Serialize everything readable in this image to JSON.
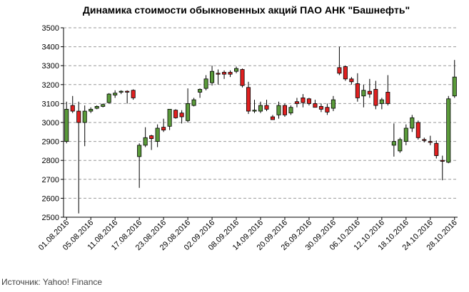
{
  "source_text": "Источник: Yahoo! Finance",
  "chart_data": {
    "type": "candlestick",
    "title": "Динамика стоимости  обыкновенных акций ПАО АНК \"Башнефть\"",
    "xlabel": "",
    "ylabel": "",
    "ylim": [
      2500,
      3500
    ],
    "yticks": [
      2500,
      2600,
      2700,
      2800,
      2900,
      3000,
      3100,
      3200,
      3300,
      3400,
      3500
    ],
    "grid": true,
    "colors": {
      "up": "#5a9a3a",
      "down": "#e02020",
      "grid": "#999999",
      "wick": "#000000"
    },
    "xtick_labels": [
      "01.08.2016",
      "05.08.2016",
      "11.08.2016",
      "17.08.2016",
      "23.08.2016",
      "29.08.2016",
      "02.09.2016",
      "08.09.2016",
      "14.09.2016",
      "20.09.2016",
      "26.09.2016",
      "30.09.2016",
      "06.10.2016",
      "12.10.2016",
      "18.10.2016",
      "24.10.2016",
      "28.10.2016"
    ],
    "candles": [
      {
        "o": 2900,
        "h": 3110,
        "l": 2890,
        "c": 3070
      },
      {
        "o": 3090,
        "h": 3140,
        "l": 3050,
        "c": 3060
      },
      {
        "o": 3060,
        "h": 3110,
        "l": 2520,
        "c": 3000
      },
      {
        "o": 3000,
        "h": 3090,
        "l": 2875,
        "c": 3060
      },
      {
        "o": 3060,
        "h": 3080,
        "l": 3050,
        "c": 3070
      },
      {
        "o": 3075,
        "h": 3090,
        "l": 3070,
        "c": 3085
      },
      {
        "o": 3085,
        "h": 3100,
        "l": 3080,
        "c": 3095
      },
      {
        "o": 3105,
        "h": 3155,
        "l": 3100,
        "c": 3150
      },
      {
        "o": 3145,
        "h": 3170,
        "l": 3130,
        "c": 3155
      },
      {
        "o": 3160,
        "h": 3170,
        "l": 3150,
        "c": 3165
      },
      {
        "o": 3165,
        "h": 3170,
        "l": 3100,
        "c": 3160
      },
      {
        "o": 3170,
        "h": 3175,
        "l": 3120,
        "c": 3130
      },
      {
        "o": 2820,
        "h": 2890,
        "l": 2655,
        "c": 2880
      },
      {
        "o": 2880,
        "h": 2975,
        "l": 2870,
        "c": 2920
      },
      {
        "o": 2930,
        "h": 2935,
        "l": 2855,
        "c": 2915
      },
      {
        "o": 2900,
        "h": 2990,
        "l": 2870,
        "c": 2970
      },
      {
        "o": 2975,
        "h": 3020,
        "l": 2950,
        "c": 2960
      },
      {
        "o": 2980,
        "h": 3070,
        "l": 2960,
        "c": 3070
      },
      {
        "o": 3065,
        "h": 3070,
        "l": 3020,
        "c": 3025
      },
      {
        "o": 3050,
        "h": 3065,
        "l": 2995,
        "c": 3030
      },
      {
        "o": 3010,
        "h": 3180,
        "l": 3000,
        "c": 3100
      },
      {
        "o": 3090,
        "h": 3130,
        "l": 3085,
        "c": 3120
      },
      {
        "o": 3160,
        "h": 3180,
        "l": 3130,
        "c": 3175
      },
      {
        "o": 3180,
        "h": 3250,
        "l": 3170,
        "c": 3230
      },
      {
        "o": 3210,
        "h": 3300,
        "l": 3195,
        "c": 3270
      },
      {
        "o": 3260,
        "h": 3280,
        "l": 3200,
        "c": 3255
      },
      {
        "o": 3265,
        "h": 3275,
        "l": 3230,
        "c": 3255
      },
      {
        "o": 3265,
        "h": 3275,
        "l": 3240,
        "c": 3255
      },
      {
        "o": 3270,
        "h": 3295,
        "l": 3260,
        "c": 3285
      },
      {
        "o": 3280,
        "h": 3285,
        "l": 3185,
        "c": 3195
      },
      {
        "o": 3185,
        "h": 3215,
        "l": 3045,
        "c": 3060
      },
      {
        "o": 3060,
        "h": 3120,
        "l": 3050,
        "c": 3065
      },
      {
        "o": 3060,
        "h": 3110,
        "l": 3050,
        "c": 3090
      },
      {
        "o": 3090,
        "h": 3120,
        "l": 3060,
        "c": 3070
      },
      {
        "o": 3030,
        "h": 3040,
        "l": 3015,
        "c": 3015
      },
      {
        "o": 3040,
        "h": 3110,
        "l": 3020,
        "c": 3090
      },
      {
        "o": 3090,
        "h": 3100,
        "l": 3030,
        "c": 3040
      },
      {
        "o": 3050,
        "h": 3090,
        "l": 3040,
        "c": 3080
      },
      {
        "o": 3110,
        "h": 3130,
        "l": 3080,
        "c": 3100
      },
      {
        "o": 3130,
        "h": 3150,
        "l": 3080,
        "c": 3105
      },
      {
        "o": 3125,
        "h": 3130,
        "l": 3090,
        "c": 3100
      },
      {
        "o": 3100,
        "h": 3120,
        "l": 3080,
        "c": 3080
      },
      {
        "o": 3085,
        "h": 3100,
        "l": 3055,
        "c": 3070
      },
      {
        "o": 3080,
        "h": 3100,
        "l": 3040,
        "c": 3055
      },
      {
        "o": 3075,
        "h": 3140,
        "l": 3060,
        "c": 3120
      },
      {
        "o": 3290,
        "h": 3400,
        "l": 3250,
        "c": 3260
      },
      {
        "o": 3295,
        "h": 3300,
        "l": 3220,
        "c": 3230
      },
      {
        "o": 3230,
        "h": 3240,
        "l": 3200,
        "c": 3215
      },
      {
        "o": 3205,
        "h": 3260,
        "l": 3110,
        "c": 3130
      },
      {
        "o": 3140,
        "h": 3200,
        "l": 3080,
        "c": 3170
      },
      {
        "o": 3165,
        "h": 3230,
        "l": 3130,
        "c": 3150
      },
      {
        "o": 3175,
        "h": 3220,
        "l": 3070,
        "c": 3090
      },
      {
        "o": 3100,
        "h": 3130,
        "l": 3070,
        "c": 3120
      },
      {
        "o": 3160,
        "h": 3250,
        "l": 3090,
        "c": 3100
      },
      {
        "o": 2880,
        "h": 2995,
        "l": 2820,
        "c": 2900
      },
      {
        "o": 2850,
        "h": 2920,
        "l": 2840,
        "c": 2910
      },
      {
        "o": 2900,
        "h": 2990,
        "l": 2880,
        "c": 2970
      },
      {
        "o": 2970,
        "h": 3040,
        "l": 2950,
        "c": 3025
      },
      {
        "o": 3000,
        "h": 3010,
        "l": 2910,
        "c": 2920
      },
      {
        "o": 2910,
        "h": 2920,
        "l": 2895,
        "c": 2905
      },
      {
        "o": 2900,
        "h": 2930,
        "l": 2880,
        "c": 2895
      },
      {
        "o": 2890,
        "h": 2905,
        "l": 2810,
        "c": 2825
      },
      {
        "o": 2800,
        "h": 2825,
        "l": 2695,
        "c": 2795
      },
      {
        "o": 2790,
        "h": 3140,
        "l": 2785,
        "c": 3125
      },
      {
        "o": 3140,
        "h": 3330,
        "l": 3130,
        "c": 3240
      }
    ]
  }
}
